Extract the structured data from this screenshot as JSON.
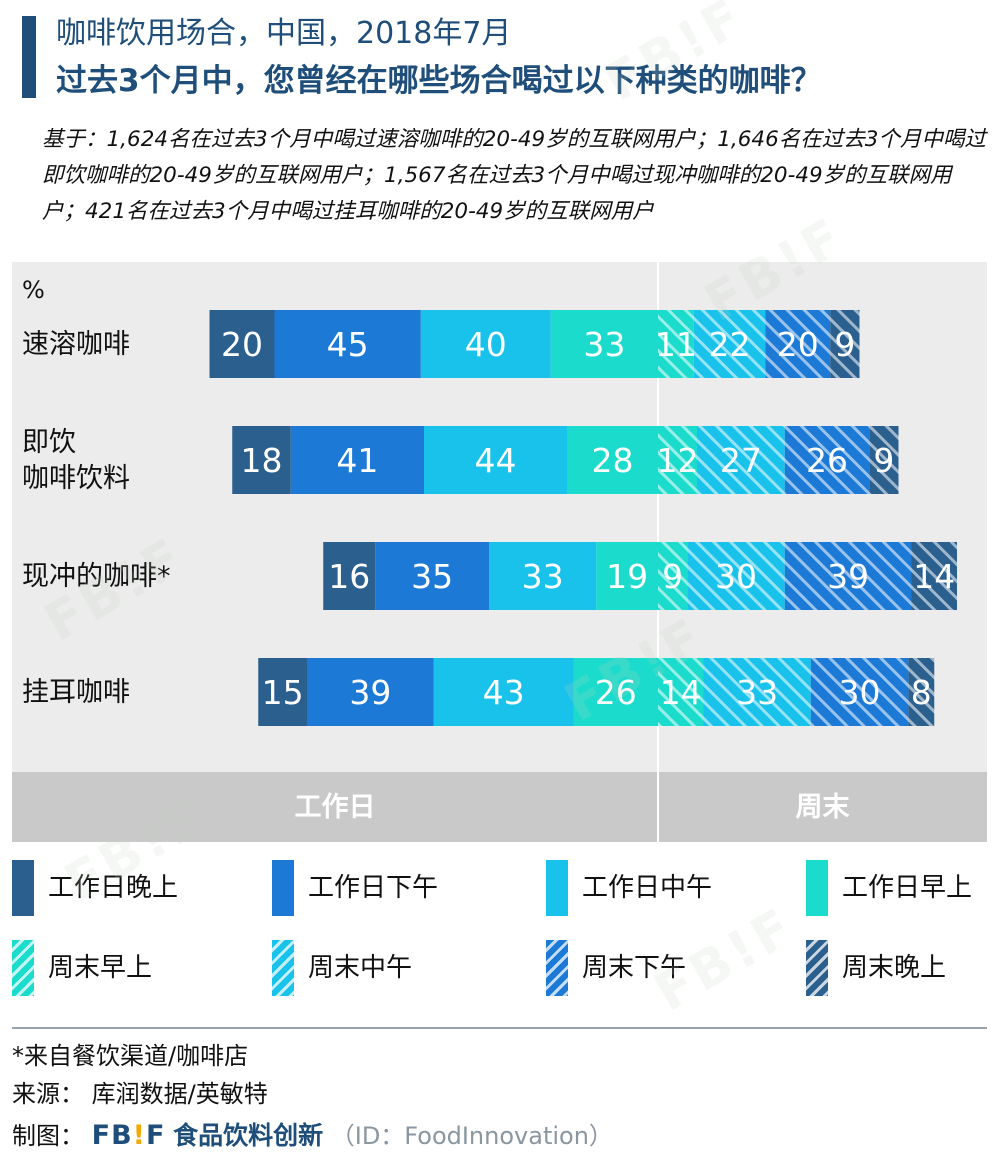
{
  "header": {
    "title_line1": "咖啡饮用场合，中国，2018年7月",
    "title_line2": "过去3个月中，您曾经在哪些场合喝过以下种类的咖啡？",
    "base_text": "基于：1,624名在过去3个月中喝过速溶咖啡的20-49岁的互联网用户；1,646名在过去3个月中喝过即饮咖啡的20-49岁的互联网用户；1,567名在过去3个月中喝过现冲咖啡的20-49岁的互联网用户；421名在过去3个月中喝过挂耳咖啡的20-49岁的互联网用户"
  },
  "chart_data": {
    "type": "bar",
    "orientation": "horizontal",
    "stacked": true,
    "unit_label": "%",
    "categories": [
      "速溶咖啡",
      "即饮\n咖啡饮料",
      "现冲的咖啡*",
      "挂耳咖啡"
    ],
    "series": [
      {
        "name": "工作日晚上",
        "group": "weekday",
        "color": "#2a5f8e",
        "hatched": false,
        "values": [
          20,
          18,
          16,
          15
        ]
      },
      {
        "name": "工作日下午",
        "group": "weekday",
        "color": "#1c7ad6",
        "hatched": false,
        "values": [
          45,
          41,
          35,
          39
        ]
      },
      {
        "name": "工作日中午",
        "group": "weekday",
        "color": "#19c2ea",
        "hatched": false,
        "values": [
          40,
          44,
          33,
          43
        ]
      },
      {
        "name": "工作日早上",
        "group": "weekday",
        "color": "#1bdccc",
        "hatched": false,
        "values": [
          33,
          28,
          19,
          26
        ]
      },
      {
        "name": "周末早上",
        "group": "weekend",
        "color": "#1bdccc",
        "hatched": true,
        "values": [
          11,
          12,
          9,
          14
        ]
      },
      {
        "name": "周末中午",
        "group": "weekend",
        "color": "#19c2ea",
        "hatched": true,
        "values": [
          22,
          27,
          30,
          33
        ]
      },
      {
        "name": "周末下午",
        "group": "weekend",
        "color": "#1c7ad6",
        "hatched": true,
        "values": [
          20,
          26,
          39,
          30
        ]
      },
      {
        "name": "周末晚上",
        "group": "weekend",
        "color": "#2a5f8e",
        "hatched": true,
        "values": [
          9,
          9,
          14,
          8
        ]
      }
    ],
    "group_labels": {
      "weekday": "工作日",
      "weekend": "周末"
    },
    "gridlines": false,
    "legend_position": "bottom"
  },
  "footer": {
    "note": "*来自餐饮渠道/咖啡店",
    "source": "来源：  库润数据/英敏特",
    "credit_label": "制图：",
    "brand_logo_a": "FB",
    "brand_logo_excl": "!",
    "brand_logo_b": "F",
    "brand_name": "食品饮料创新",
    "brand_id": "（ID：FoodInnovation）"
  }
}
